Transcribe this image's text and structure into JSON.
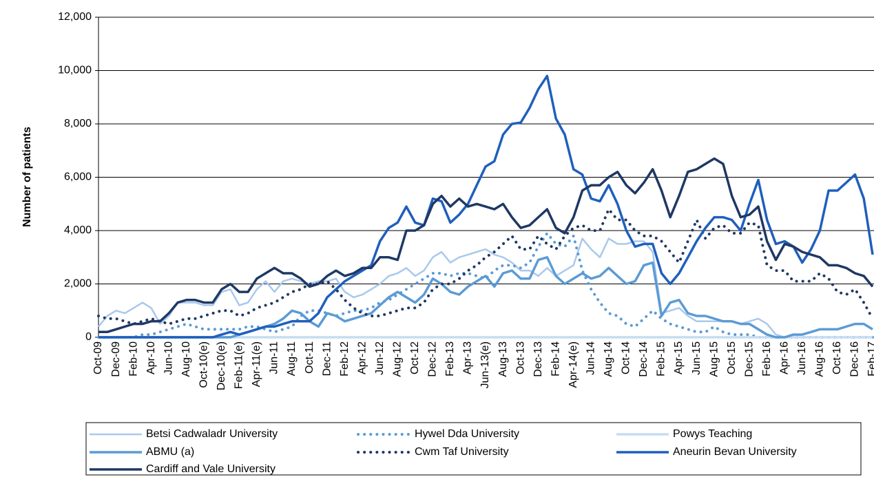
{
  "chart_data": {
    "type": "line",
    "y_label": "Number of patients",
    "categories": [
      "Oct-09",
      null,
      "Dec-09",
      null,
      "Feb-10",
      null,
      "Apr-10",
      null,
      "Jun-10",
      null,
      "Aug-10",
      null,
      "Oct-10(e)",
      null,
      "Dec-10(e)",
      null,
      "Feb-11(e)",
      null,
      "Apr-11(e)",
      null,
      "Jun-11",
      null,
      "Aug-11",
      null,
      "Oct-11",
      null,
      "Dec-11",
      null,
      "Feb-12",
      null,
      "Apr-12",
      null,
      "Jun-12",
      null,
      "Aug-12",
      null,
      "Oct-12",
      null,
      "Dec-12",
      null,
      "Feb-13",
      null,
      "Apr-13",
      null,
      "Jun-13(e)",
      null,
      "Aug-13",
      null,
      "Oct-13",
      null,
      "Dec-13",
      null,
      "Feb-14",
      null,
      "Apr-14(e)",
      null,
      "Jun-14",
      null,
      "Aug-14",
      null,
      "Oct-14",
      null,
      "Dec-14",
      null,
      "Feb-15",
      null,
      "Apr-15",
      null,
      "Jun-15",
      null,
      "Aug-15",
      null,
      "Oct-15",
      null,
      "Dec-15",
      null,
      "Feb-16",
      null,
      "Apr-16",
      null,
      "Jun-16",
      null,
      "Aug-16",
      null,
      "Oct-16",
      null,
      "Dec-16",
      null,
      "Feb-17"
    ],
    "ylim": [
      0,
      12000
    ],
    "yticks": [
      0,
      {
        "value": 2000,
        "label": "2,000"
      },
      {
        "value": 4000,
        "label": "4,000"
      },
      {
        "value": 6000,
        "label": "6,000"
      },
      {
        "value": 8000,
        "label": "8,000"
      },
      {
        "value": 10000,
        "label": "10,000"
      },
      {
        "value": 12000,
        "label": "12,000"
      }
    ],
    "grid": true,
    "legend": "bottom",
    "series": [
      {
        "name": "Betsi Cadwaladr University",
        "color": "#a9c9ec",
        "style": "solid",
        "width": 2.5,
        "values": [
          400,
          800,
          1000,
          900,
          1100,
          1300,
          1100,
          500,
          800,
          1300,
          1300,
          1300,
          1200,
          1200,
          1700,
          1800,
          1200,
          1300,
          1800,
          2100,
          1700,
          2100,
          2200,
          2100,
          2000,
          2100,
          2100,
          2200,
          1700,
          1500,
          1600,
          1800,
          2000,
          2300,
          2400,
          2600,
          2300,
          2500,
          3000,
          3200,
          2800,
          3000,
          3100,
          3200,
          3300,
          3100,
          3000,
          2800,
          2500,
          2500,
          2300,
          2600,
          2300,
          2500,
          2700,
          3700,
          3300,
          3000,
          3700,
          3500,
          3500,
          3600,
          3600,
          3200,
          900,
          1000,
          1100,
          800,
          600,
          600,
          600,
          600,
          600,
          500,
          600,
          700,
          500,
          100,
          0,
          0,
          0,
          0,
          0,
          0,
          0,
          0,
          0,
          0,
          0
        ]
      },
      {
        "name": "Hywel Dda University",
        "color": "#5b9bd5",
        "style": "dotted",
        "width": 4,
        "values": [
          0,
          0,
          0,
          0,
          0,
          100,
          100,
          200,
          300,
          400,
          500,
          400,
          300,
          300,
          300,
          300,
          300,
          400,
          400,
          300,
          200,
          300,
          400,
          800,
          1000,
          1000,
          900,
          800,
          900,
          1000,
          1000,
          1100,
          1300,
          1400,
          1600,
          1800,
          2000,
          2200,
          2400,
          2400,
          2300,
          2400,
          2400,
          2300,
          2200,
          2500,
          2700,
          2700,
          2600,
          2800,
          3400,
          3900,
          3500,
          3400,
          3800,
          2500,
          1800,
          1300,
          900,
          800,
          500,
          400,
          700,
          1000,
          700,
          500,
          400,
          300,
          200,
          200,
          400,
          200,
          100,
          100,
          100,
          0,
          0,
          0,
          0,
          0,
          0,
          0,
          0,
          0,
          0,
          0,
          0,
          0,
          0
        ]
      },
      {
        "name": "Powys Teaching",
        "color": "#c6dcf2",
        "style": "solid",
        "width": 3.5,
        "values": [
          0,
          0,
          0,
          0,
          0,
          0,
          0,
          0,
          0,
          0,
          0,
          0,
          0,
          0,
          0,
          0,
          0,
          0,
          0,
          0,
          0,
          0,
          0,
          0,
          0,
          0,
          0,
          0,
          0,
          0,
          0,
          0,
          0,
          0,
          0,
          0,
          0,
          0,
          0,
          0,
          0,
          0,
          0,
          0,
          0,
          0,
          0,
          0,
          0,
          0,
          0,
          0,
          0,
          0,
          0,
          0,
          0,
          0,
          0,
          0,
          0,
          0,
          0,
          0,
          0,
          0,
          0,
          0,
          0,
          0,
          0,
          0,
          0,
          0,
          0,
          0,
          0,
          0,
          0,
          0,
          0,
          0,
          0,
          0,
          0,
          0,
          0,
          0,
          0
        ]
      },
      {
        "name": "ABMU (a)",
        "color": "#5b9bd5",
        "style": "solid",
        "width": 3.5,
        "values": [
          0,
          0,
          0,
          0,
          0,
          0,
          0,
          0,
          0,
          0,
          0,
          0,
          0,
          0,
          0,
          0,
          100,
          200,
          300,
          400,
          500,
          700,
          1000,
          900,
          600,
          400,
          900,
          800,
          600,
          700,
          800,
          900,
          1200,
          1500,
          1700,
          1500,
          1300,
          1600,
          2200,
          2000,
          1700,
          1600,
          1900,
          2100,
          2300,
          1900,
          2400,
          2500,
          2200,
          2200,
          2900,
          3000,
          2300,
          2000,
          2200,
          2400,
          2200,
          2300,
          2600,
          2300,
          2000,
          2100,
          2700,
          2800,
          800,
          1300,
          1400,
          900,
          800,
          800,
          700,
          600,
          600,
          500,
          500,
          300,
          100,
          0,
          0,
          100,
          100,
          200,
          300,
          300,
          300,
          400,
          500,
          500,
          300
        ]
      },
      {
        "name": "Cwm Taf University",
        "color": "#1f3864",
        "style": "dotted",
        "width": 4,
        "values": [
          800,
          700,
          700,
          600,
          500,
          600,
          700,
          600,
          500,
          600,
          700,
          700,
          800,
          900,
          1000,
          1000,
          800,
          900,
          1100,
          1200,
          1300,
          1500,
          1700,
          1800,
          2000,
          2000,
          2100,
          1800,
          1400,
          1100,
          900,
          800,
          800,
          900,
          1000,
          1100,
          1100,
          1300,
          1800,
          2000,
          2000,
          2200,
          2500,
          2700,
          3000,
          3200,
          3500,
          3800,
          3300,
          3300,
          3800,
          3500,
          3300,
          3800,
          4100,
          4200,
          4000,
          4000,
          4800,
          4400,
          4400,
          4000,
          3800,
          3800,
          3600,
          3200,
          2800,
          3600,
          4400,
          3700,
          4100,
          4200,
          3900,
          3900,
          4300,
          4200,
          2700,
          2500,
          2500,
          2100,
          2100,
          2100,
          2400,
          2200,
          1700,
          1600,
          1800,
          1300,
          700
        ]
      },
      {
        "name": "Aneurin Bevan University",
        "color": "#1f5fbd",
        "style": "solid",
        "width": 3.5,
        "values": [
          0,
          0,
          0,
          0,
          0,
          0,
          0,
          0,
          0,
          0,
          0,
          0,
          0,
          0,
          100,
          200,
          100,
          200,
          300,
          400,
          400,
          500,
          600,
          600,
          600,
          900,
          1500,
          1800,
          2100,
          2300,
          2500,
          2700,
          3600,
          4100,
          4300,
          4900,
          4300,
          4200,
          5200,
          5100,
          4300,
          4600,
          5000,
          5700,
          6400,
          6600,
          7600,
          8000,
          8050,
          8600,
          9300,
          9800,
          8200,
          7600,
          6300,
          6100,
          5200,
          5100,
          5700,
          5000,
          4000,
          3400,
          3500,
          3500,
          2400,
          2000,
          2400,
          3000,
          3600,
          4100,
          4500,
          4500,
          4400,
          4000,
          5000,
          5900,
          4400,
          3500,
          3600,
          3400,
          2800,
          3300,
          4000,
          5500,
          5500,
          5800,
          6100,
          5200,
          3100
        ]
      },
      {
        "name": "Cardiff and Vale University",
        "color": "#1f3864",
        "style": "solid",
        "width": 3.5,
        "values": [
          200,
          200,
          300,
          400,
          500,
          500,
          600,
          600,
          900,
          1300,
          1400,
          1400,
          1300,
          1300,
          1800,
          2000,
          1700,
          1700,
          2200,
          2400,
          2600,
          2400,
          2400,
          2200,
          1900,
          2000,
          2300,
          2500,
          2300,
          2400,
          2600,
          2600,
          3000,
          3000,
          2900,
          4000,
          4000,
          4200,
          5000,
          5300,
          4900,
          5200,
          4900,
          5000,
          4900,
          4800,
          5000,
          4500,
          4100,
          4200,
          4500,
          4800,
          4100,
          3900,
          4500,
          5500,
          5700,
          5700,
          6000,
          6200,
          5700,
          5400,
          5800,
          6300,
          5500,
          4500,
          5300,
          6200,
          6300,
          6500,
          6700,
          6500,
          5300,
          4500,
          4600,
          4900,
          3600,
          2900,
          3500,
          3400,
          3200,
          3100,
          3000,
          2700,
          2700,
          2600,
          2400,
          2300,
          1900
        ]
      }
    ]
  }
}
